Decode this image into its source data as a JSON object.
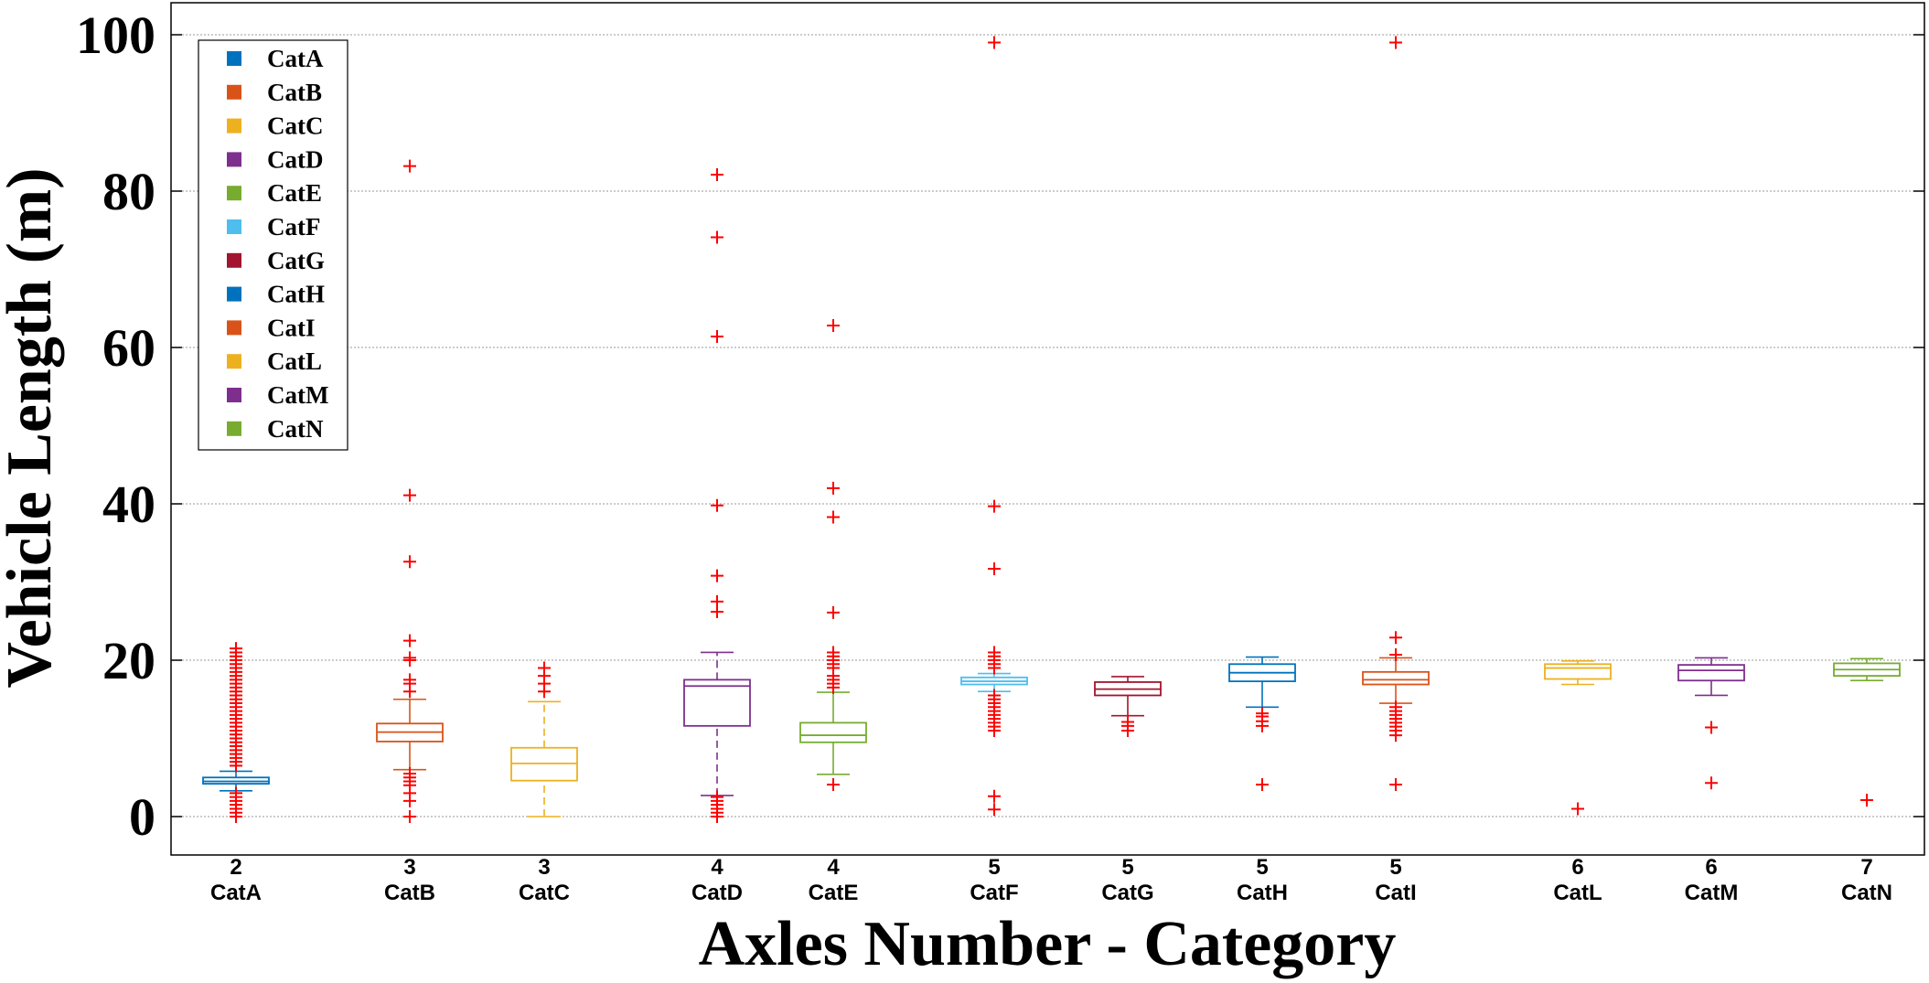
{
  "chart_data": {
    "type": "boxplot",
    "xlabel": "Axles Number - Category",
    "ylabel": "Vehicle Length (m)",
    "ylim": [
      0,
      100
    ],
    "yticks": [
      0,
      20,
      40,
      60,
      80,
      100
    ],
    "grid": "horizontal dotted",
    "legend_position": "top-left",
    "outlier_color": "#ff0000",
    "categories": [
      {
        "axles": "2",
        "name": "CatA",
        "color": "#0072bd",
        "q1": 4.2,
        "median": 4.5,
        "q3": 5.0,
        "whisker_low": 3.3,
        "whisker_high": 5.8,
        "dashed": false,
        "outliers": [
          0,
          0.5,
          1,
          1.5,
          2,
          2.5,
          3,
          6.5,
          7,
          7.5,
          8,
          8.5,
          9,
          9.5,
          10,
          10.5,
          11,
          11.5,
          12,
          12.5,
          13,
          13.5,
          14,
          14.5,
          15,
          15.5,
          16,
          16.5,
          17,
          17.5,
          18,
          18.5,
          19,
          19.5,
          20,
          20.5,
          21,
          21.5
        ]
      },
      {
        "axles": "3",
        "name": "CatB",
        "color": "#d95319",
        "q1": 9.6,
        "median": 10.8,
        "q3": 11.9,
        "whisker_low": 6.0,
        "whisker_high": 15.0,
        "dashed": false,
        "outliers": [
          0,
          2,
          3,
          4,
          4.5,
          5,
          5.5,
          16,
          17,
          17.5,
          20,
          20.3,
          22.5,
          32.6,
          41.1,
          83.2
        ]
      },
      {
        "axles": "3",
        "name": "CatC",
        "color": "#edb120",
        "q1": 4.6,
        "median": 6.8,
        "q3": 8.8,
        "whisker_low": 0.0,
        "whisker_high": 14.7,
        "dashed": true,
        "outliers": [
          16,
          17,
          18,
          19
        ]
      },
      {
        "axles": "4",
        "name": "CatD",
        "color": "#7e2f8e",
        "q1": 11.6,
        "median": 16.7,
        "q3": 17.5,
        "whisker_low": 2.7,
        "whisker_high": 21.0,
        "dashed": true,
        "outliers": [
          0,
          0.5,
          1,
          1.5,
          2,
          2.5,
          26.2,
          27.5,
          30.8,
          39.8,
          61.4,
          74.1,
          82.1
        ]
      },
      {
        "axles": "4",
        "name": "CatE",
        "color": "#77ac30",
        "q1": 9.5,
        "median": 10.4,
        "q3": 12.0,
        "whisker_low": 5.4,
        "whisker_high": 15.9,
        "dashed": false,
        "outliers": [
          4.1,
          16.5,
          17,
          17.5,
          18,
          19,
          19.5,
          20,
          20.5,
          21,
          26.1,
          38.3,
          42.0,
          62.8
        ]
      },
      {
        "axles": "5",
        "name": "CatF",
        "color": "#4dbeee",
        "q1": 16.9,
        "median": 17.3,
        "q3": 17.8,
        "whisker_low": 16.0,
        "whisker_high": 18.3,
        "dashed": false,
        "outliers": [
          0.9,
          2.6,
          11,
          11.5,
          12,
          12.5,
          13,
          13.5,
          14,
          14.5,
          15,
          15.5,
          19,
          19.5,
          20,
          20.5,
          21,
          31.7,
          39.7,
          99.0
        ]
      },
      {
        "axles": "5",
        "name": "CatG",
        "color": "#a2142f",
        "q1": 15.5,
        "median": 16.3,
        "q3": 17.2,
        "whisker_low": 12.9,
        "whisker_high": 17.9,
        "dashed": false,
        "outliers": [
          11.0,
          11.6,
          12.1
        ]
      },
      {
        "axles": "5",
        "name": "CatH",
        "color": "#0072bd",
        "q1": 17.3,
        "median": 18.4,
        "q3": 19.5,
        "whisker_low": 14.0,
        "whisker_high": 20.4,
        "dashed": false,
        "outliers": [
          4.1,
          11.6,
          12.2,
          12.8,
          13.2
        ]
      },
      {
        "axles": "5",
        "name": "CatI",
        "color": "#d95319",
        "q1": 16.9,
        "median": 17.5,
        "q3": 18.5,
        "whisker_low": 14.5,
        "whisker_high": 20.3,
        "dashed": false,
        "outliers": [
          4.1,
          10.4,
          11.0,
          11.5,
          12,
          12.5,
          13,
          13.5,
          14.0,
          20.7,
          22.9,
          99.0
        ]
      },
      {
        "axles": "6",
        "name": "CatL",
        "color": "#edb120",
        "q1": 17.6,
        "median": 19.0,
        "q3": 19.5,
        "whisker_low": 16.9,
        "whisker_high": 19.9,
        "dashed": false,
        "outliers": [
          1.0
        ]
      },
      {
        "axles": "6",
        "name": "CatM",
        "color": "#7e2f8e",
        "q1": 17.4,
        "median": 18.7,
        "q3": 19.4,
        "whisker_low": 15.5,
        "whisker_high": 20.3,
        "dashed": false,
        "outliers": [
          4.3,
          11.4
        ]
      },
      {
        "axles": "7",
        "name": "CatN",
        "color": "#77ac30",
        "q1": 18.0,
        "median": 18.8,
        "q3": 19.6,
        "whisker_low": 17.4,
        "whisker_high": 20.2,
        "dashed": false,
        "outliers": [
          2.1
        ]
      }
    ]
  }
}
